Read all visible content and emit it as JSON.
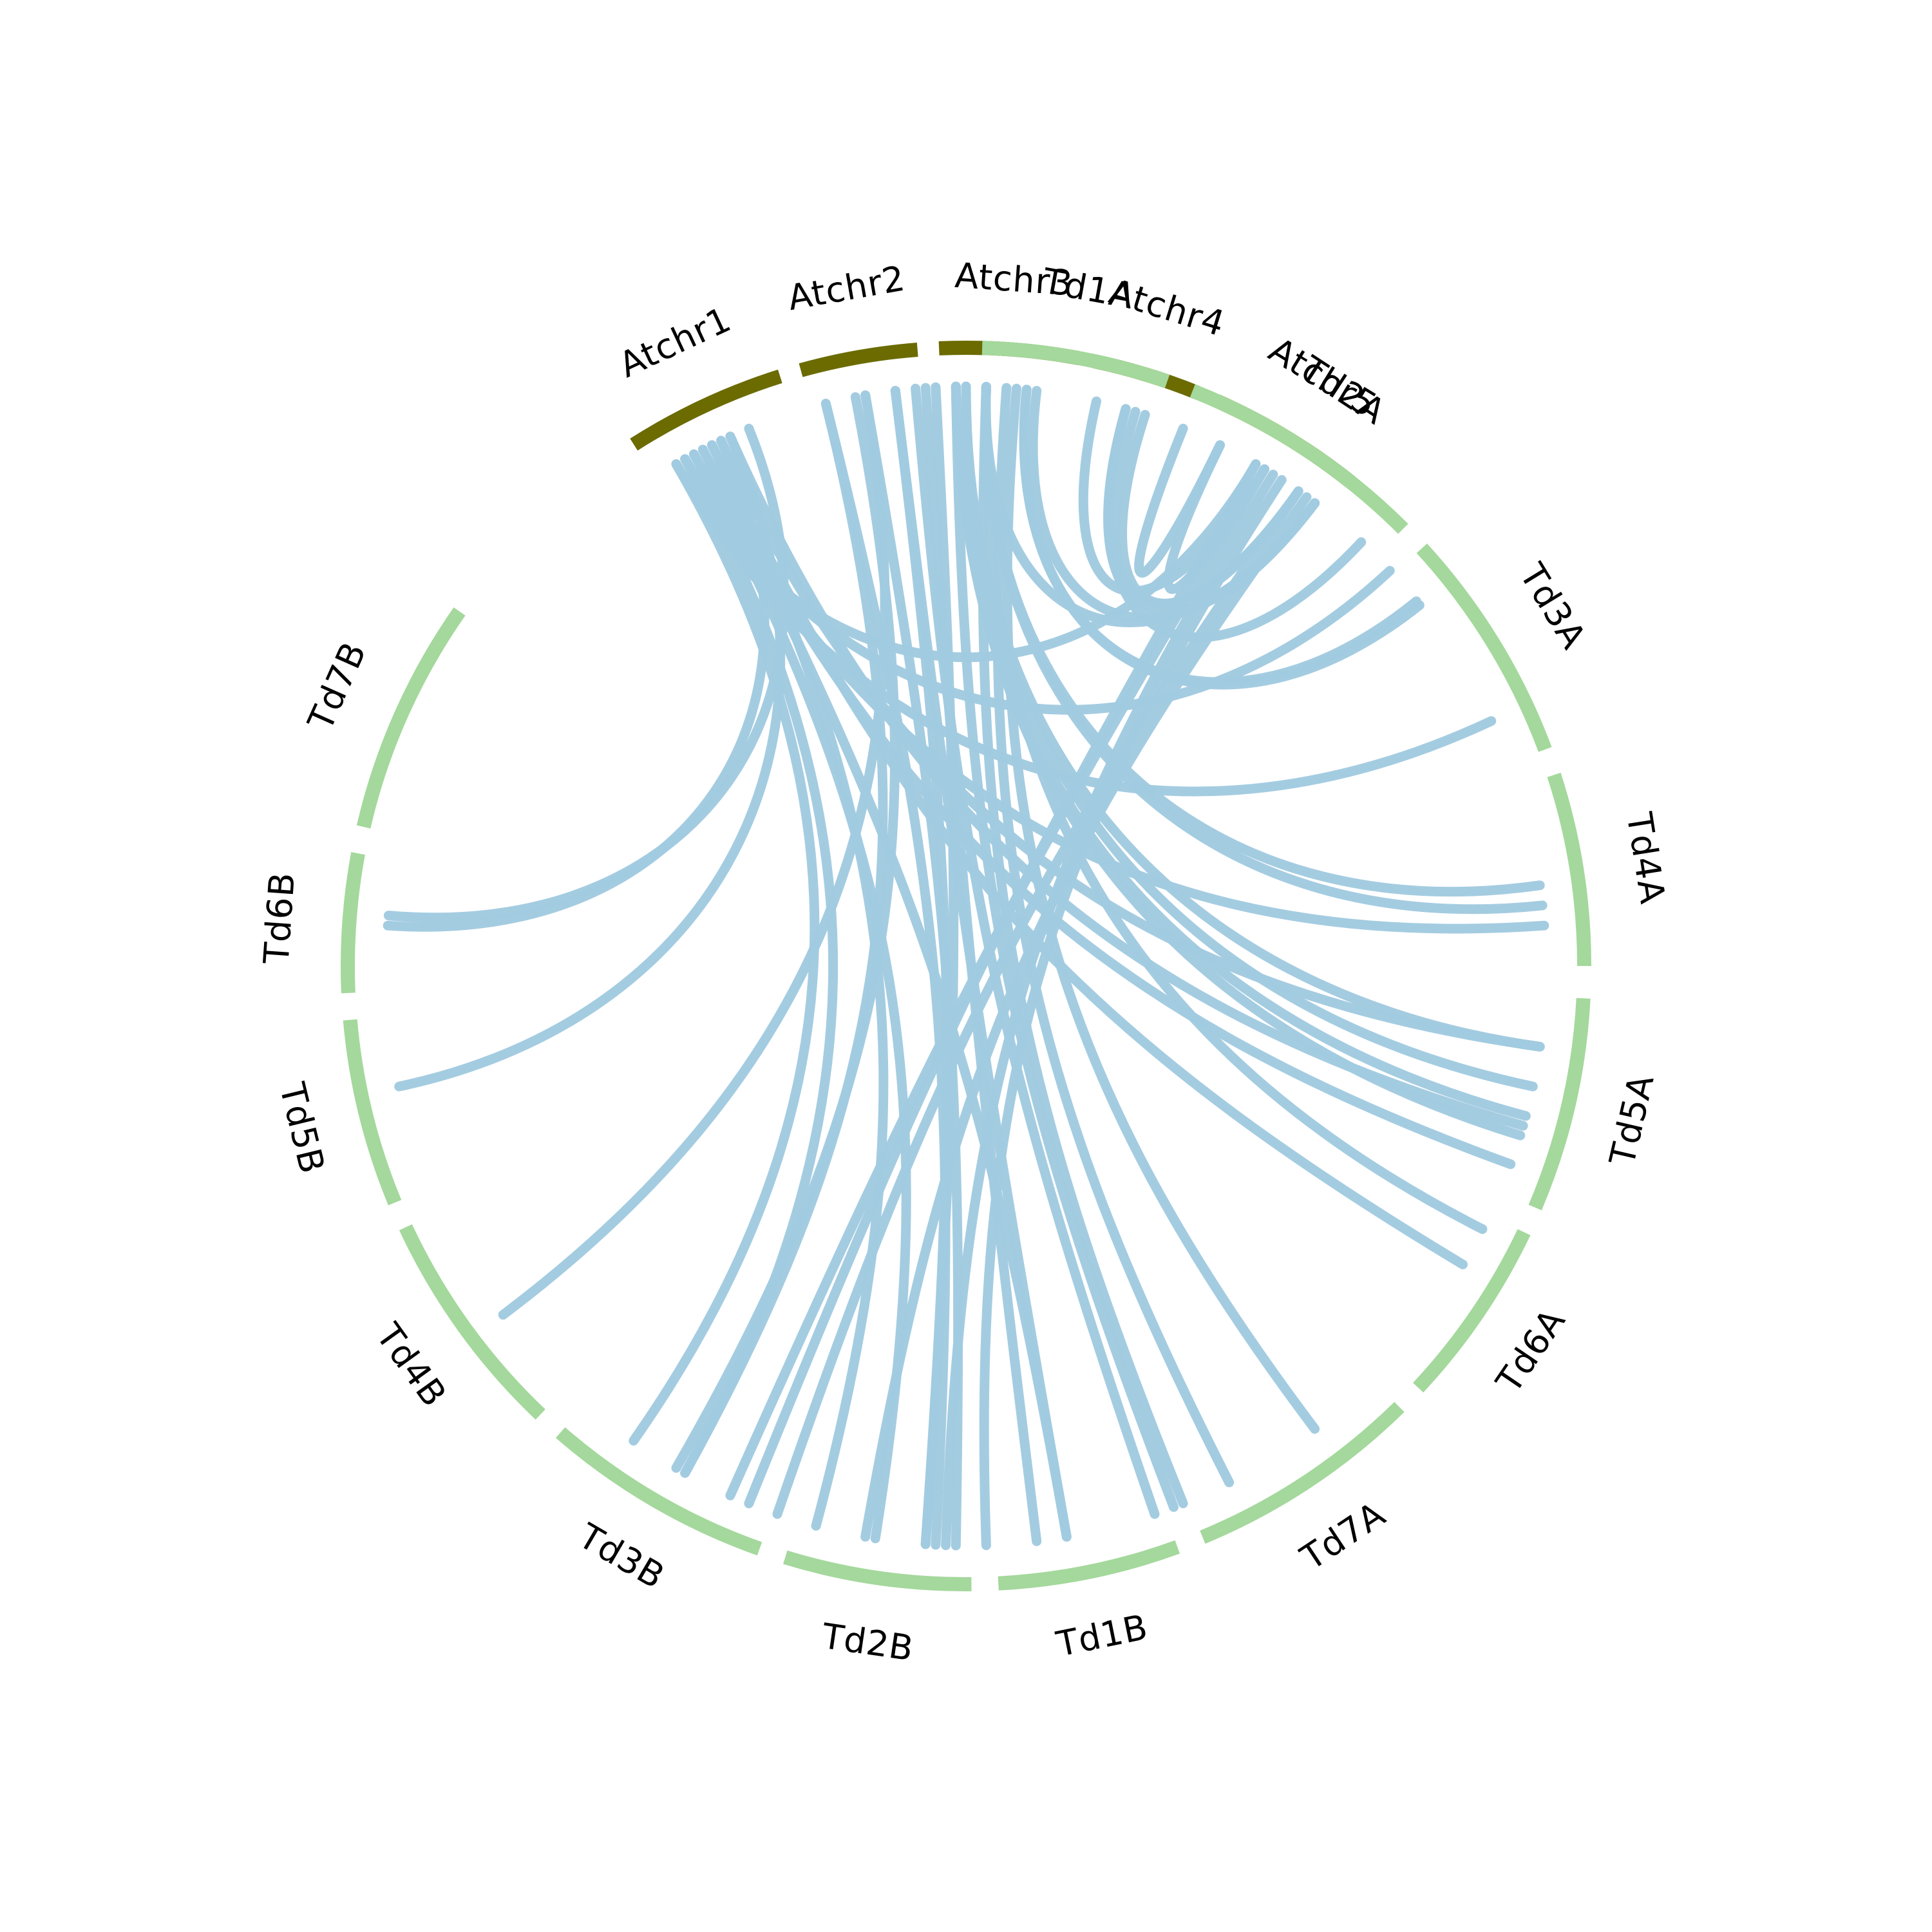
{
  "colors": {
    "arabidopsis": "#6b6b00",
    "wheat": "#a4d89c",
    "link": "#a1cae0",
    "label": "#000000",
    "background": "#ffffff"
  },
  "chart_data": {
    "type": "circos",
    "chromosomes": [
      {
        "id": "Atchr1",
        "label": "Atchr1",
        "group": "arabidopsis",
        "start_deg": 327.5,
        "end_deg": 342.5
      },
      {
        "id": "Atchr2",
        "label": "Atchr2",
        "group": "arabidopsis",
        "start_deg": 344.5,
        "end_deg": 355.5
      },
      {
        "id": "Atchr3",
        "label": "Atchr3",
        "group": "arabidopsis",
        "start_deg": 357.5,
        "end_deg": 370.5
      },
      {
        "id": "Atchr4",
        "label": "Atchr4",
        "group": "arabidopsis",
        "start_deg": 372.0,
        "end_deg": 382.0
      },
      {
        "id": "Atchr5",
        "label": "Atchr5",
        "group": "arabidopsis",
        "start_deg": 384.0,
        "end_deg": 398.5
      },
      {
        "id": "Td1A",
        "label": "Td1A",
        "group": "wheat",
        "start_deg": 1.5,
        "end_deg": 19.0
      },
      {
        "id": "Td2A",
        "label": "Td2A",
        "group": "wheat",
        "start_deg": 21.5,
        "end_deg": 45.0
      },
      {
        "id": "Td3A",
        "label": "Td3A",
        "group": "wheat",
        "start_deg": 47.5,
        "end_deg": 69.5
      },
      {
        "id": "Td4A",
        "label": "Td4A",
        "group": "wheat",
        "start_deg": 72.0,
        "end_deg": 90.0
      },
      {
        "id": "Td5A",
        "label": "Td5A",
        "group": "wheat",
        "start_deg": 93.0,
        "end_deg": 113.0
      },
      {
        "id": "Td6A",
        "label": "Td6A",
        "group": "wheat",
        "start_deg": 115.5,
        "end_deg": 133.0
      },
      {
        "id": "Td7A",
        "label": "Td7A",
        "group": "wheat",
        "start_deg": 135.5,
        "end_deg": 157.5
      },
      {
        "id": "Td1B",
        "label": "Td1B",
        "group": "wheat",
        "start_deg": 160.0,
        "end_deg": 177.0
      },
      {
        "id": "Td2B",
        "label": "Td2B",
        "group": "wheat",
        "start_deg": 179.5,
        "end_deg": 197.0
      },
      {
        "id": "Td3B",
        "label": "Td3B",
        "group": "wheat",
        "start_deg": 199.5,
        "end_deg": 221.0
      },
      {
        "id": "Td4B",
        "label": "Td4B",
        "group": "wheat",
        "start_deg": 223.5,
        "end_deg": 245.0
      },
      {
        "id": "Td5B",
        "label": "Td5B",
        "group": "wheat",
        "start_deg": 247.5,
        "end_deg": 265.0
      },
      {
        "id": "Td6B",
        "label": "Td6B",
        "group": "wheat",
        "start_deg": 267.5,
        "end_deg": 280.5
      },
      {
        "id": "Td7B",
        "label": "Td7B",
        "group": "wheat",
        "start_deg": 283.0,
        "end_deg": 305.0
      }
    ],
    "links": [
      {
        "from_deg": 390,
        "to_deg": 202
      },
      {
        "from_deg": 391,
        "to_deg": 204
      },
      {
        "from_deg": 392,
        "to_deg": 182
      },
      {
        "from_deg": 393,
        "to_deg": 178
      },
      {
        "from_deg": 395,
        "to_deg": 199
      },
      {
        "from_deg": 396,
        "to_deg": 190
      },
      {
        "from_deg": 397,
        "to_deg": 7
      },
      {
        "from_deg": 391,
        "to_deg": 13
      },
      {
        "from_deg": 395,
        "to_deg": 17
      },
      {
        "from_deg": 395,
        "to_deg": 18
      },
      {
        "from_deg": 397,
        "to_deg": 2
      },
      {
        "from_deg": 386,
        "to_deg": 22
      },
      {
        "from_deg": 386,
        "to_deg": 31
      },
      {
        "from_deg": 376,
        "to_deg": 37
      },
      {
        "from_deg": 376,
        "to_deg": 43
      },
      {
        "from_deg": 366,
        "to_deg": 51
      },
      {
        "from_deg": 366,
        "to_deg": 51.5
      },
      {
        "from_deg": 362,
        "to_deg": 82
      },
      {
        "from_deg": 362,
        "to_deg": 84
      },
      {
        "from_deg": 360,
        "to_deg": 98
      },
      {
        "from_deg": 360,
        "to_deg": 102
      },
      {
        "from_deg": 359,
        "to_deg": 105
      },
      {
        "from_deg": 359,
        "to_deg": 107
      },
      {
        "from_deg": 362,
        "to_deg": 117
      },
      {
        "from_deg": 365,
        "to_deg": 143
      },
      {
        "from_deg": 364,
        "to_deg": 153
      },
      {
        "from_deg": 362,
        "to_deg": 158
      },
      {
        "from_deg": 359,
        "to_deg": 159
      },
      {
        "from_deg": 357,
        "to_deg": 184
      },
      {
        "from_deg": 355,
        "to_deg": 161
      },
      {
        "from_deg": 353,
        "to_deg": 170
      },
      {
        "from_deg": 350,
        "to_deg": 181
      },
      {
        "from_deg": 346,
        "to_deg": 183
      },
      {
        "from_deg": 346,
        "to_deg": 209
      },
      {
        "from_deg": 349,
        "to_deg": 210
      },
      {
        "from_deg": 350,
        "to_deg": 233
      },
      {
        "from_deg": 353,
        "to_deg": 184
      },
      {
        "from_deg": 356,
        "to_deg": 173
      },
      {
        "from_deg": 338,
        "to_deg": 275
      },
      {
        "from_deg": 336,
        "to_deg": 258
      },
      {
        "from_deg": 335,
        "to_deg": 98
      },
      {
        "from_deg": 336,
        "to_deg": 106
      },
      {
        "from_deg": 333,
        "to_deg": 110
      },
      {
        "from_deg": 334,
        "to_deg": 121
      },
      {
        "from_deg": 332,
        "to_deg": 86
      },
      {
        "from_deg": 331,
        "to_deg": 47
      },
      {
        "from_deg": 330,
        "to_deg": 65
      },
      {
        "from_deg": 330,
        "to_deg": 30
      },
      {
        "from_deg": 333,
        "to_deg": 170
      },
      {
        "from_deg": 332,
        "to_deg": 189
      },
      {
        "from_deg": 334,
        "to_deg": 195
      },
      {
        "from_deg": 331,
        "to_deg": 209
      },
      {
        "from_deg": 330,
        "to_deg": 215
      },
      {
        "from_deg": 335,
        "to_deg": 274
      }
    ]
  }
}
